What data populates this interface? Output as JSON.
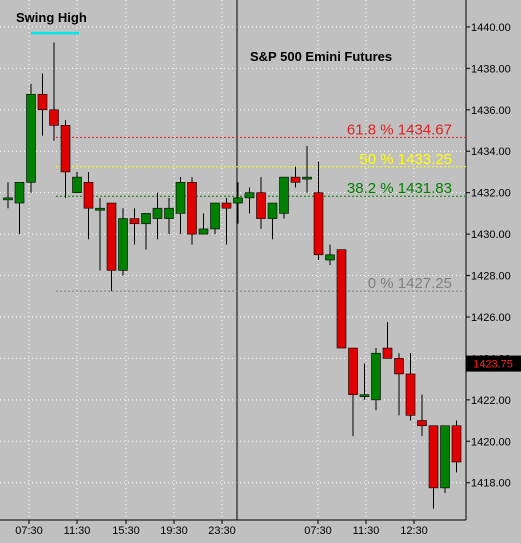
{
  "chart_data": {
    "type": "candlestick",
    "title": "S&P 500 Emini Futures",
    "xlabel": "",
    "ylabel": "",
    "ylim": [
      1416.2,
      1441.3
    ],
    "x_tick_labels": [
      "07:30",
      "11:30",
      "15:30",
      "19:30",
      "23:30",
      "07:30",
      "11:30",
      "12:30"
    ],
    "y_ticks": [
      1418.0,
      1420.0,
      1422.0,
      1424.0,
      1426.0,
      1428.0,
      1430.0,
      1432.0,
      1434.0,
      1436.0,
      1438.0,
      1440.0
    ],
    "last_price": 1423.75,
    "up_color": "#008000",
    "down_color": "#e00000",
    "candles": [
      {
        "o": 1431.75,
        "h": 1432.5,
        "l": 1431.25,
        "c": 1431.75
      },
      {
        "o": 1431.5,
        "h": 1432.5,
        "l": 1430.0,
        "c": 1432.5
      },
      {
        "o": 1432.5,
        "h": 1437.25,
        "l": 1432.0,
        "c": 1436.75
      },
      {
        "o": 1436.75,
        "h": 1437.75,
        "l": 1434.75,
        "c": 1436.0
      },
      {
        "o": 1436.0,
        "h": 1439.25,
        "l": 1434.5,
        "c": 1435.25
      },
      {
        "o": 1435.25,
        "h": 1435.5,
        "l": 1431.75,
        "c": 1433.0
      },
      {
        "o": 1432.0,
        "h": 1433.0,
        "l": 1432.0,
        "c": 1432.75
      },
      {
        "o": 1432.5,
        "h": 1433.0,
        "l": 1429.75,
        "c": 1431.25
      },
      {
        "o": 1431.25,
        "h": 1431.75,
        "l": 1428.25,
        "c": 1431.25
      },
      {
        "o": 1431.5,
        "h": 1431.5,
        "l": 1427.25,
        "c": 1428.25
      },
      {
        "o": 1428.25,
        "h": 1431.25,
        "l": 1428.0,
        "c": 1430.75
      },
      {
        "o": 1430.75,
        "h": 1431.25,
        "l": 1429.5,
        "c": 1430.5
      },
      {
        "o": 1430.5,
        "h": 1431.0,
        "l": 1429.25,
        "c": 1431.0
      },
      {
        "o": 1430.75,
        "h": 1432.0,
        "l": 1429.75,
        "c": 1431.25
      },
      {
        "o": 1430.75,
        "h": 1431.75,
        "l": 1430.0,
        "c": 1431.25
      },
      {
        "o": 1431.0,
        "h": 1432.75,
        "l": 1430.0,
        "c": 1432.5
      },
      {
        "o": 1432.5,
        "h": 1432.75,
        "l": 1429.5,
        "c": 1430.0
      },
      {
        "o": 1430.0,
        "h": 1431.0,
        "l": 1430.0,
        "c": 1430.25
      },
      {
        "o": 1430.25,
        "h": 1431.25,
        "l": 1430.0,
        "c": 1431.5
      },
      {
        "o": 1431.5,
        "h": 1431.75,
        "l": 1429.5,
        "c": 1431.25
      },
      {
        "o": 1431.5,
        "h": 1432.5,
        "l": 1430.5,
        "c": 1431.75
      },
      {
        "o": 1431.75,
        "h": 1432.25,
        "l": 1431.0,
        "c": 1432.0
      },
      {
        "o": 1432.0,
        "h": 1432.75,
        "l": 1430.25,
        "c": 1430.75
      },
      {
        "o": 1430.75,
        "h": 1431.5,
        "l": 1429.75,
        "c": 1431.5
      },
      {
        "o": 1431.0,
        "h": 1432.75,
        "l": 1430.75,
        "c": 1432.75
      },
      {
        "o": 1432.75,
        "h": 1433.25,
        "l": 1432.25,
        "c": 1432.5
      },
      {
        "o": 1432.75,
        "h": 1434.25,
        "l": 1432.0,
        "c": 1432.75
      },
      {
        "o": 1432.0,
        "h": 1433.5,
        "l": 1428.75,
        "c": 1429.0
      },
      {
        "o": 1428.75,
        "h": 1429.5,
        "l": 1428.5,
        "c": 1429.0
      },
      {
        "o": 1429.25,
        "h": 1429.25,
        "l": 1424.5,
        "c": 1424.5
      },
      {
        "o": 1424.5,
        "h": 1424.5,
        "l": 1420.25,
        "c": 1422.25
      },
      {
        "o": 1422.25,
        "h": 1423.75,
        "l": 1422.0,
        "c": 1422.25
      },
      {
        "o": 1422.0,
        "h": 1424.5,
        "l": 1421.5,
        "c": 1424.25
      },
      {
        "o": 1424.5,
        "h": 1425.75,
        "l": 1424.0,
        "c": 1424.0
      },
      {
        "o": 1424.0,
        "h": 1424.25,
        "l": 1421.25,
        "c": 1423.25
      },
      {
        "o": 1423.25,
        "h": 1424.25,
        "l": 1421.0,
        "c": 1421.25
      },
      {
        "o": 1421.0,
        "h": 1422.25,
        "l": 1420.25,
        "c": 1420.75
      },
      {
        "o": 1420.75,
        "h": 1420.75,
        "l": 1416.75,
        "c": 1417.75
      },
      {
        "o": 1417.75,
        "h": 1420.75,
        "l": 1417.5,
        "c": 1420.75
      },
      {
        "o": 1420.75,
        "h": 1421.0,
        "l": 1418.5,
        "c": 1419.0
      }
    ],
    "annotations": [
      {
        "name": "swing-high",
        "text": "Swing High",
        "value": 1439.7,
        "color": "#00e5ee"
      }
    ],
    "fib_levels": [
      {
        "name": "fib-61-8",
        "label": "61.8 %  1434.67",
        "value": 1434.67,
        "color": "#e02020"
      },
      {
        "name": "fib-50",
        "label": "50 %  1433.25",
        "value": 1433.25,
        "color": "#ffff00"
      },
      {
        "name": "fib-38-2",
        "label": "38.2 %  1431.83",
        "value": 1431.83,
        "color": "#008000"
      },
      {
        "name": "fib-0",
        "label": "0 %  1427.25",
        "value": 1427.25,
        "color": "#808080"
      }
    ]
  }
}
